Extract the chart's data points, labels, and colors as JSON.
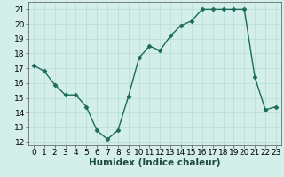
{
  "x": [
    0,
    1,
    2,
    3,
    4,
    5,
    6,
    7,
    8,
    9,
    10,
    11,
    12,
    13,
    14,
    15,
    16,
    17,
    18,
    19,
    20,
    21,
    22,
    23
  ],
  "y": [
    17.2,
    16.8,
    15.9,
    15.2,
    15.2,
    14.4,
    12.8,
    12.2,
    12.8,
    15.1,
    17.7,
    18.5,
    18.2,
    19.2,
    19.9,
    20.2,
    21.0,
    21.0,
    21.0,
    21.0,
    21.0,
    16.4,
    14.2,
    14.4
  ],
  "line_color": "#1a6b5a",
  "marker": "D",
  "marker_size": 2.5,
  "bg_color": "#d4eeea",
  "grid_color": "#b8ddd8",
  "xlabel": "Humidex (Indice chaleur)",
  "ylim": [
    11.8,
    21.5
  ],
  "xlim": [
    -0.5,
    23.5
  ],
  "yticks": [
    12,
    13,
    14,
    15,
    16,
    17,
    18,
    19,
    20,
    21
  ],
  "xticks": [
    0,
    1,
    2,
    3,
    4,
    5,
    6,
    7,
    8,
    9,
    10,
    11,
    12,
    13,
    14,
    15,
    16,
    17,
    18,
    19,
    20,
    21,
    22,
    23
  ],
  "tick_fontsize": 6.5,
  "xlabel_fontsize": 7.5,
  "line_width": 1.0
}
